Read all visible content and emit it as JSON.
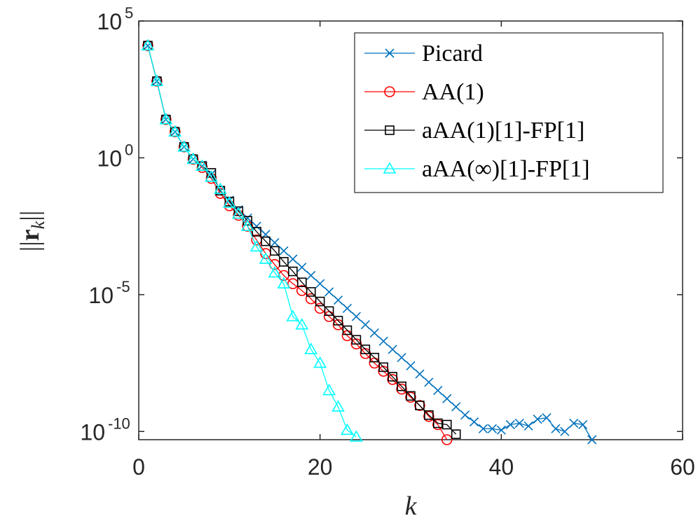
{
  "chart_data": {
    "type": "line",
    "title": "",
    "xlabel": "k",
    "ylabel": "||r_k||",
    "ylabel_parts": {
      "open": "||",
      "r": "r",
      "sub": "k",
      "close": "||"
    },
    "xlim": [
      0,
      60
    ],
    "ylim_log10": [
      -10.3,
      5
    ],
    "yscale": "log",
    "x_ticks": [
      0,
      20,
      40,
      60
    ],
    "y_ticks": [
      {
        "value_log10": 5,
        "base": "10",
        "exponent": "5"
      },
      {
        "value_log10": 0,
        "base": "10",
        "exponent": "0"
      },
      {
        "value_log10": -5,
        "base": "10",
        "exponent": "-5"
      },
      {
        "value_log10": -10,
        "base": "10",
        "exponent": "-10"
      }
    ],
    "legend_position": "top-right",
    "series": [
      {
        "name": "Picard",
        "color": "#0072BD",
        "marker": "x",
        "x": [
          1,
          2,
          3,
          4,
          5,
          6,
          7,
          8,
          9,
          10,
          11,
          12,
          13,
          14,
          15,
          16,
          17,
          18,
          19,
          20,
          21,
          22,
          23,
          24,
          25,
          26,
          27,
          28,
          29,
          30,
          31,
          32,
          33,
          34,
          35,
          36,
          37,
          38,
          39,
          40,
          41,
          42,
          43,
          44,
          45,
          46,
          47,
          48,
          49,
          50
        ],
        "log10_y": [
          4.1,
          2.8,
          1.4,
          0.95,
          0.4,
          -0.05,
          -0.3,
          -0.6,
          -1.2,
          -1.55,
          -1.9,
          -2.2,
          -2.5,
          -2.8,
          -3.1,
          -3.4,
          -3.7,
          -4.0,
          -4.3,
          -4.6,
          -4.9,
          -5.2,
          -5.5,
          -5.8,
          -6.1,
          -6.4,
          -6.7,
          -7.0,
          -7.3,
          -7.6,
          -7.9,
          -8.2,
          -8.5,
          -8.8,
          -9.1,
          -9.4,
          -9.65,
          -9.9,
          -9.9,
          -9.95,
          -9.75,
          -9.7,
          -9.8,
          -9.55,
          -9.5,
          -9.9,
          -10.0,
          -9.7,
          -9.75,
          -10.3
        ]
      },
      {
        "name": "AA(1)",
        "color": "#FF0000",
        "marker": "o",
        "x": [
          1,
          2,
          3,
          4,
          5,
          6,
          7,
          8,
          9,
          10,
          11,
          12,
          13,
          14,
          15,
          16,
          17,
          18,
          19,
          20,
          21,
          22,
          23,
          24,
          25,
          26,
          27,
          28,
          29,
          30,
          31,
          32,
          33,
          34
        ],
        "log10_y": [
          4.1,
          2.8,
          1.4,
          0.95,
          0.4,
          -0.05,
          -0.35,
          -0.75,
          -1.3,
          -1.75,
          -2.1,
          -2.5,
          -3.0,
          -3.5,
          -3.9,
          -4.3,
          -4.6,
          -4.85,
          -5.15,
          -5.5,
          -5.8,
          -6.1,
          -6.5,
          -6.8,
          -7.15,
          -7.5,
          -7.8,
          -8.1,
          -8.45,
          -8.75,
          -9.05,
          -9.45,
          -9.75,
          -10.3
        ]
      },
      {
        "name": "aAA(1)[1]-FP[1]",
        "color": "#000000",
        "marker": "s",
        "x": [
          1,
          2,
          3,
          4,
          5,
          6,
          7,
          8,
          9,
          10,
          11,
          12,
          13,
          14,
          15,
          16,
          17,
          18,
          19,
          20,
          21,
          22,
          23,
          24,
          25,
          26,
          27,
          28,
          29,
          30,
          31,
          32,
          33,
          34,
          35
        ],
        "log10_y": [
          4.1,
          2.8,
          1.4,
          0.95,
          0.4,
          -0.05,
          -0.3,
          -0.55,
          -1.2,
          -1.6,
          -1.95,
          -2.3,
          -2.7,
          -3.05,
          -3.4,
          -3.8,
          -4.15,
          -4.55,
          -4.9,
          -5.25,
          -5.6,
          -5.95,
          -6.3,
          -6.65,
          -7.0,
          -7.3,
          -7.65,
          -8.0,
          -8.35,
          -8.7,
          -9.05,
          -9.4,
          -9.7,
          -9.75,
          -10.1
        ]
      },
      {
        "name": "aAA(∞)[1]-FP[1]",
        "color": "#00FFFF",
        "marker": "^",
        "x": [
          1,
          2,
          3,
          4,
          5,
          6,
          7,
          8,
          9,
          10,
          11,
          12,
          13,
          14,
          15,
          16,
          17,
          18,
          19,
          20,
          21,
          22,
          23,
          24
        ],
        "log10_y": [
          4.1,
          2.8,
          1.4,
          0.95,
          0.4,
          -0.05,
          -0.3,
          -0.7,
          -1.15,
          -1.65,
          -2.05,
          -2.5,
          -3.25,
          -3.7,
          -4.2,
          -4.6,
          -5.8,
          -6.1,
          -7.0,
          -7.5,
          -8.5,
          -9.1,
          -9.95,
          -10.2
        ]
      }
    ]
  }
}
